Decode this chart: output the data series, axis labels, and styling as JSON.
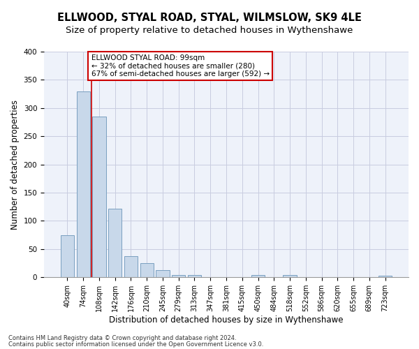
{
  "title": "ELLWOOD, STYAL ROAD, STYAL, WILMSLOW, SK9 4LE",
  "subtitle": "Size of property relative to detached houses in Wythenshawe",
  "xlabel": "Distribution of detached houses by size in Wythenshawe",
  "ylabel": "Number of detached properties",
  "footnote1": "Contains HM Land Registry data © Crown copyright and database right 2024.",
  "footnote2": "Contains public sector information licensed under the Open Government Licence v3.0.",
  "categories": [
    "40sqm",
    "74sqm",
    "108sqm",
    "142sqm",
    "176sqm",
    "210sqm",
    "245sqm",
    "279sqm",
    "313sqm",
    "347sqm",
    "381sqm",
    "415sqm",
    "450sqm",
    "484sqm",
    "518sqm",
    "552sqm",
    "586sqm",
    "620sqm",
    "655sqm",
    "689sqm",
    "723sqm"
  ],
  "values": [
    75,
    330,
    285,
    122,
    38,
    25,
    13,
    4,
    4,
    0,
    0,
    0,
    4,
    0,
    4,
    0,
    0,
    0,
    0,
    0,
    3
  ],
  "bar_color": "#c8d8ea",
  "bar_edge_color": "#7a9fc0",
  "vline_x": 1.5,
  "vline_color": "#cc0000",
  "annotation_text": "ELLWOOD STYAL ROAD: 99sqm\n← 32% of detached houses are smaller (280)\n67% of semi-detached houses are larger (592) →",
  "annotation_box_color": "#ffffff",
  "annotation_box_edge": "#cc0000",
  "ylim": [
    0,
    400
  ],
  "yticks": [
    0,
    50,
    100,
    150,
    200,
    250,
    300,
    350,
    400
  ],
  "bg_color": "#eef2fa",
  "grid_color": "#c8cce0",
  "title_fontsize": 10.5,
  "subtitle_fontsize": 9.5,
  "xlabel_fontsize": 8.5,
  "ylabel_fontsize": 8.5,
  "tick_fontsize": 7.0,
  "ann_fontsize": 7.5
}
